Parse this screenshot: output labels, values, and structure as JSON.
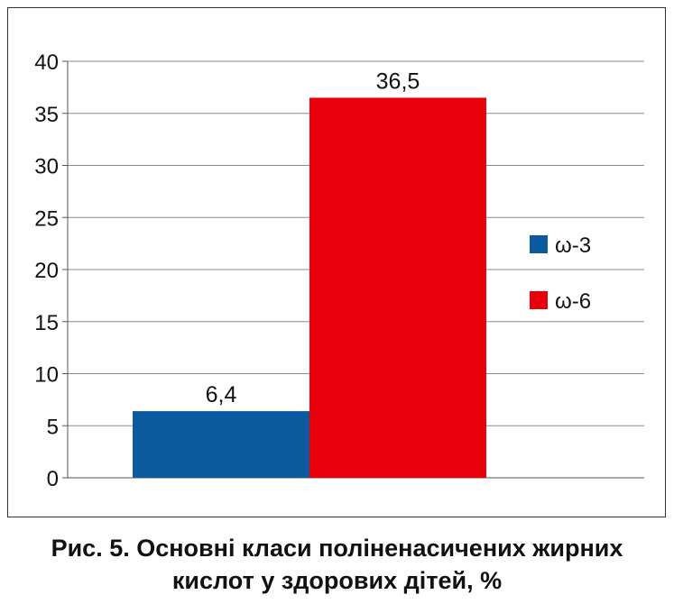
{
  "chart_data": {
    "type": "bar",
    "series": [
      {
        "name": "ω-3",
        "value": 6.4,
        "label": "6,4",
        "color": "#0b5aa0"
      },
      {
        "name": "ω-6",
        "value": 36.5,
        "label": "36,5",
        "color": "#e8000b"
      }
    ],
    "ylim": [
      0,
      40
    ],
    "yticks": [
      0,
      5,
      10,
      15,
      20,
      25,
      30,
      35,
      40
    ],
    "grid": true,
    "legend_position": "right"
  },
  "caption": {
    "line1": "Рис. 5. Основні класи поліненасичених жирних",
    "line2": "кислот у здорових дітей, %"
  }
}
